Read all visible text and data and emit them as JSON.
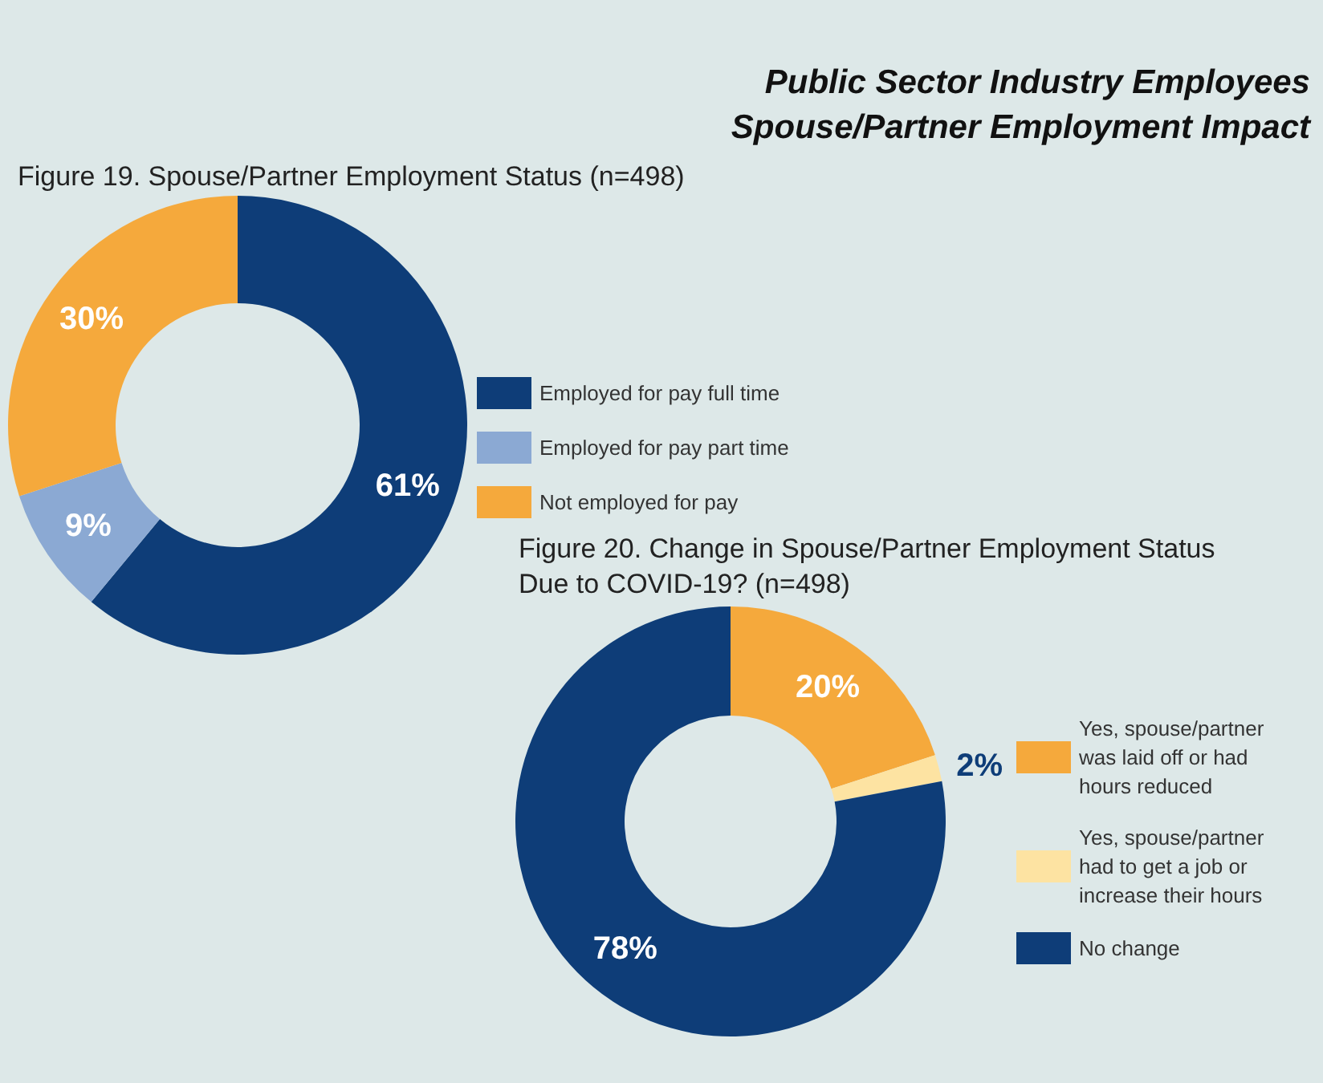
{
  "chart_data": [
    {
      "type": "donut",
      "title": "Figure 19. Spouse/Partner Employment Status (n=498)",
      "annotations": [
        "Public Sector Industry Employees",
        "Spouse/Partner Employment Impact"
      ],
      "categories": [
        "Employed for pay full time",
        "Employed for pay part time",
        "Not employed for pay"
      ],
      "values": [
        61,
        9,
        30
      ],
      "colors": [
        "#0e3d78",
        "#8ba9d3",
        "#f5a93c"
      ],
      "value_labels": [
        "61%",
        "9%",
        "30%"
      ],
      "legend": "right"
    },
    {
      "type": "donut",
      "title": "Figure 20. Change in Spouse/Partner Employment Status Due to COVID-19? (n=498)",
      "categories": [
        "Yes, spouse/partner was laid off or had hours reduced",
        "Yes, spouse/partner had to get a job or increase their hours",
        "No change"
      ],
      "values": [
        20,
        2,
        78
      ],
      "colors": [
        "#f5a93c",
        "#fde3a2",
        "#0e3d78"
      ],
      "value_labels": [
        "20%",
        "2%",
        "78%"
      ],
      "legend": "right"
    }
  ]
}
